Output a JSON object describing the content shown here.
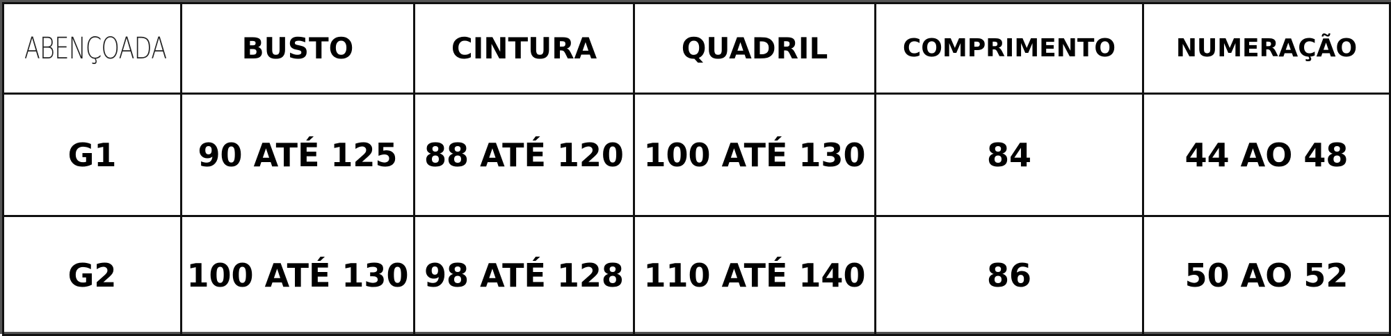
{
  "brand": "ABENÇOADA",
  "headers": [
    "BUSTO",
    "CINTURA",
    "QUADRIL",
    "COMPRIMENTO",
    "NUMERAÇÃO"
  ],
  "rows": [
    {
      "size": "G1",
      "cells": [
        "90 ATÉ 125",
        "88 ATÉ 120",
        "100 ATÉ 130",
        "84",
        "44 AO 48"
      ]
    },
    {
      "size": "G2",
      "cells": [
        "100 ATÉ 130",
        "98 ATÉ 128",
        "110 ATÉ 140",
        "86",
        "50 AO 52"
      ]
    }
  ]
}
